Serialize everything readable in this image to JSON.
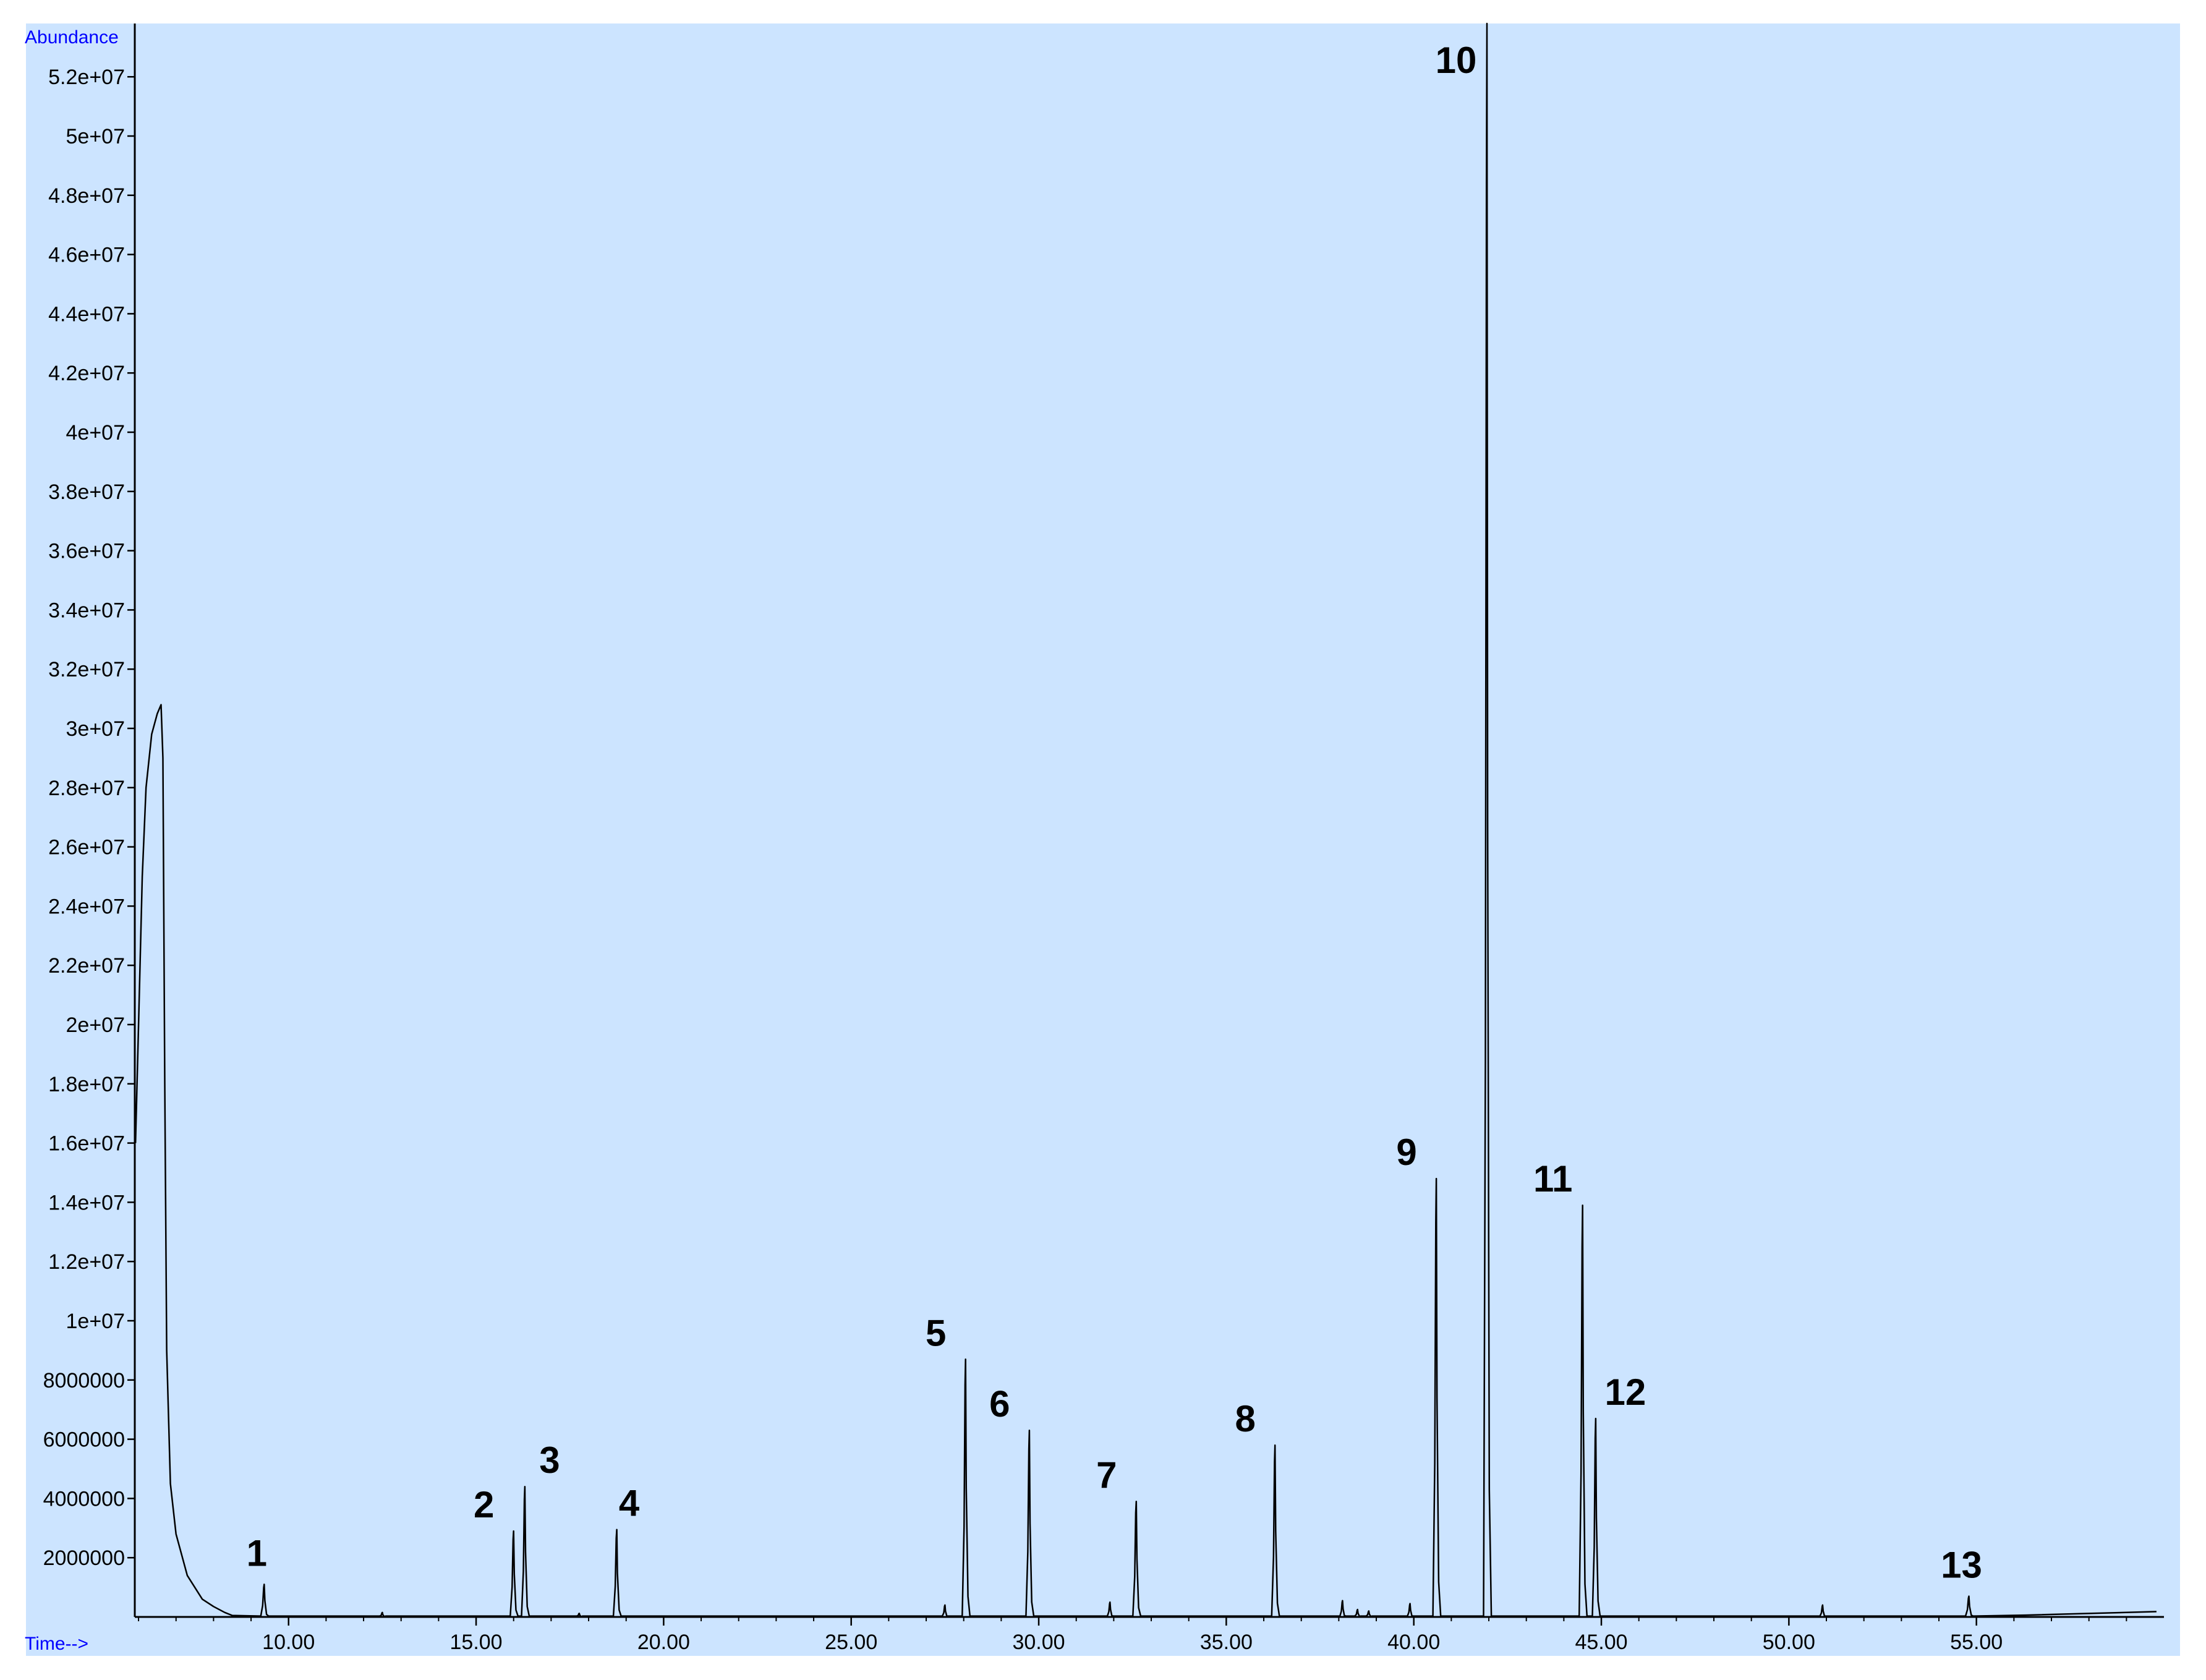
{
  "chart_data": {
    "type": "line",
    "ylabel": "Abundance",
    "xlabel": "Time-->",
    "xlim": [
      5.9,
      60.0
    ],
    "ylim": [
      0,
      53800000
    ],
    "x_ticks": [
      10,
      15,
      20,
      25,
      30,
      35,
      40,
      45,
      50,
      55
    ],
    "x_tick_labels": [
      "10.00",
      "15.00",
      "20.00",
      "25.00",
      "30.00",
      "35.00",
      "40.00",
      "45.00",
      "50.00",
      "55.00"
    ],
    "y_ticks": [
      2000000,
      4000000,
      6000000,
      8000000,
      10000000,
      12000000,
      14000000,
      16000000,
      18000000,
      20000000,
      22000000,
      24000000,
      26000000,
      28000000,
      30000000,
      32000000,
      34000000,
      36000000,
      38000000,
      40000000,
      42000000,
      44000000,
      46000000,
      48000000,
      50000000,
      52000000
    ],
    "y_tick_labels": [
      "2000000",
      "4000000",
      "6000000",
      "8000000",
      "1e+07",
      "1.2e+07",
      "1.4e+07",
      "1.6e+07",
      "1.8e+07",
      "2e+07",
      "2.2e+07",
      "2.4e+07",
      "2.6e+07",
      "2.8e+07",
      "3e+07",
      "3.2e+07",
      "3.4e+07",
      "3.6e+07",
      "3.8e+07",
      "4e+07",
      "4.2e+07",
      "4.4e+07",
      "4.6e+07",
      "4.8e+07",
      "5e+07",
      "5.2e+07"
    ],
    "grid": false,
    "colors": {
      "background": "#cce4ff",
      "line": "#000000",
      "axis_title": "#0000ff"
    },
    "solvent_front": [
      {
        "x": 5.92,
        "y": 16000000
      },
      {
        "x": 6.0,
        "y": 20000000
      },
      {
        "x": 6.1,
        "y": 25000000
      },
      {
        "x": 6.2,
        "y": 28000000
      },
      {
        "x": 6.35,
        "y": 29800000
      },
      {
        "x": 6.5,
        "y": 30500000
      },
      {
        "x": 6.6,
        "y": 30800000
      },
      {
        "x": 6.65,
        "y": 29000000
      },
      {
        "x": 6.7,
        "y": 18000000
      },
      {
        "x": 6.75,
        "y": 9000000
      },
      {
        "x": 6.85,
        "y": 4500000
      },
      {
        "x": 7.0,
        "y": 2800000
      },
      {
        "x": 7.3,
        "y": 1400000
      },
      {
        "x": 7.7,
        "y": 600000
      },
      {
        "x": 8.0,
        "y": 350000
      },
      {
        "x": 8.3,
        "y": 150000
      },
      {
        "x": 8.5,
        "y": 50000
      }
    ],
    "peaks": [
      {
        "label": "1",
        "x": 9.35,
        "y": 1100000
      },
      {
        "label": "2",
        "x": 16.0,
        "y": 2900000
      },
      {
        "label": "3",
        "x": 16.3,
        "y": 4400000
      },
      {
        "label": "4",
        "x": 18.75,
        "y": 2950000
      },
      {
        "label": "5",
        "x": 28.05,
        "y": 8700000
      },
      {
        "label": "6",
        "x": 29.75,
        "y": 6300000
      },
      {
        "label": "7",
        "x": 32.6,
        "y": 3900000
      },
      {
        "label": "8",
        "x": 36.3,
        "y": 5800000
      },
      {
        "label": "9",
        "x": 40.6,
        "y": 14800000
      },
      {
        "label": "10",
        "x": 41.95,
        "y": 53800000
      },
      {
        "label": "11",
        "x": 44.5,
        "y": 13900000
      },
      {
        "label": "12",
        "x": 44.85,
        "y": 6700000
      },
      {
        "label": "13",
        "x": 54.8,
        "y": 700000
      }
    ],
    "minor_peaks": [
      {
        "x": 12.5,
        "y": 150000
      },
      {
        "x": 17.75,
        "y": 120000
      },
      {
        "x": 27.5,
        "y": 400000
      },
      {
        "x": 31.9,
        "y": 500000
      },
      {
        "x": 38.1,
        "y": 550000
      },
      {
        "x": 38.5,
        "y": 250000
      },
      {
        "x": 38.8,
        "y": 200000
      },
      {
        "x": 39.9,
        "y": 450000
      },
      {
        "x": 50.9,
        "y": 400000
      }
    ],
    "baseline_rise": {
      "start_x": 56.3,
      "end_x": 59.8,
      "start_y": 60000,
      "end_y": 180000
    }
  }
}
